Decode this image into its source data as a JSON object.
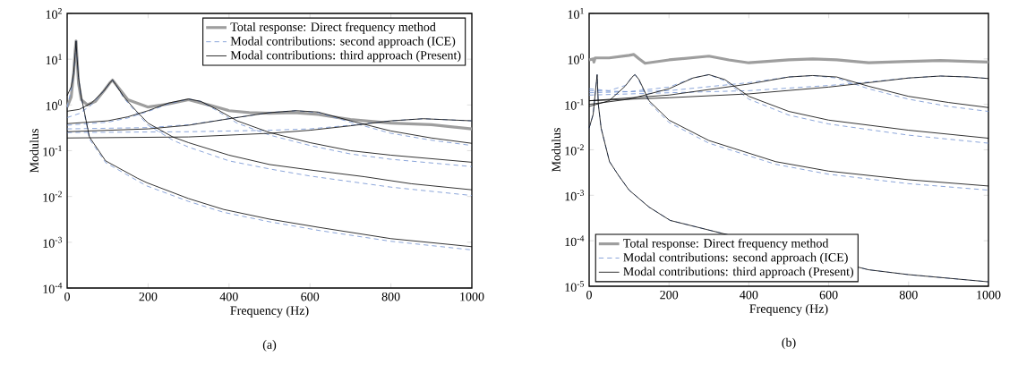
{
  "chart_data": [
    {
      "type": "line",
      "xlabel": "Frequency (Hz)",
      "ylabel": "Modulus",
      "annotations": [
        "(a)"
      ],
      "log": "y",
      "legend": "top right",
      "xlim": [
        0,
        1000
      ],
      "ylim": [
        0.0001,
        100
      ],
      "xticks": [
        0,
        200,
        400,
        600,
        800,
        1000
      ],
      "yticks": [
        {
          "value": 0.0001,
          "label": "10$^{-4}$"
        },
        {
          "value": 0.001,
          "label": "10$^{-3}$"
        },
        {
          "value": 0.01,
          "label": "10$^{-2}$"
        },
        {
          "value": 0.1,
          "label": "10$^{-1}$"
        },
        {
          "value": 1,
          "label": "10$^{0}$"
        },
        {
          "value": 10,
          "label": "10$^{1}$"
        },
        {
          "value": 100,
          "label": "10$^{2}$"
        }
      ],
      "series": [
        {
          "name": "Total response: Direct frequency method",
          "color": "#9e9e9e",
          "line_style": "solid",
          "x": [
            0,
            10,
            16,
            20,
            22,
            24,
            28,
            35,
            50,
            70,
            90,
            105,
            112,
            125,
            150,
            200,
            250,
            300,
            350,
            400,
            450,
            500,
            560,
            620,
            700,
            800,
            900,
            1000
          ],
          "values": [
            0.9,
            1.5,
            5,
            16,
            25,
            12,
            3,
            1.3,
            1.0,
            1.2,
            2.0,
            3.0,
            3.5,
            2.5,
            1.3,
            0.9,
            1.05,
            1.3,
            1.0,
            0.75,
            0.68,
            0.66,
            0.68,
            0.62,
            0.48,
            0.4,
            0.37,
            0.3
          ]
        },
        {
          "name": "Modal contributions: second approach (ICE)",
          "color": "#6f8fd0",
          "line_style": "dashed",
          "x": [
            0,
            10,
            16,
            20,
            22,
            24,
            28,
            35,
            55,
            95,
            174,
            197,
            300,
            387,
            500,
            624,
            800,
            1000
          ],
          "values": [
            0.88,
            2.2,
            4.8,
            14,
            25,
            12,
            4,
            1.4,
            0.18,
            0.055,
            0.022,
            0.017,
            0.0078,
            0.0045,
            0.0028,
            0.0018,
            0.00105,
            0.00068
          ]
        },
        {
          "color": "#6f8fd0",
          "line_style": "dashed",
          "x": [
            0,
            30,
            60,
            90,
            105,
            112,
            120,
            140,
            170,
            200,
            261,
            300,
            400,
            500,
            600,
            800,
            1000
          ],
          "values": [
            0.53,
            0.65,
            1.0,
            2.0,
            3.0,
            3.5,
            2.8,
            1.4,
            0.7,
            0.36,
            0.17,
            0.12,
            0.06,
            0.04,
            0.028,
            0.016,
            0.0105
          ]
        },
        {
          "color": "#6f8fd0",
          "line_style": "dashed",
          "x": [
            0,
            100,
            150,
            200,
            250,
            300,
            330,
            370,
            420,
            500,
            600,
            700,
            800,
            1000
          ],
          "values": [
            0.36,
            0.42,
            0.52,
            0.72,
            1.05,
            1.35,
            1.2,
            0.75,
            0.4,
            0.22,
            0.13,
            0.085,
            0.065,
            0.045
          ]
        },
        {
          "color": "#6f8fd0",
          "line_style": "dashed",
          "x": [
            0,
            200,
            300,
            400,
            500,
            565,
            620,
            700,
            800,
            900,
            1000
          ],
          "values": [
            0.3,
            0.32,
            0.37,
            0.5,
            0.68,
            0.75,
            0.68,
            0.42,
            0.24,
            0.17,
            0.13
          ]
        },
        {
          "color": "#6f8fd0",
          "line_style": "dashed",
          "x": [
            0,
            300,
            500,
            600,
            700,
            800,
            880,
            950,
            1000
          ],
          "values": [
            0.25,
            0.26,
            0.28,
            0.3,
            0.36,
            0.45,
            0.5,
            0.47,
            0.45
          ]
        },
        {
          "name": "Modal contributions: third approach (Present)",
          "color": "#000000",
          "line_style": "solid",
          "x": [
            0,
            10,
            16,
            20,
            22,
            24,
            28,
            35,
            55,
            95,
            174,
            197,
            300,
            387,
            500,
            624,
            800,
            1000
          ],
          "values": [
            1.6,
            2.5,
            5,
            14,
            25,
            12,
            4,
            1.5,
            0.2,
            0.06,
            0.025,
            0.02,
            0.009,
            0.0052,
            0.0032,
            0.0021,
            0.0012,
            0.0008
          ]
        },
        {
          "color": "#000000",
          "line_style": "solid",
          "x": [
            0,
            30,
            60,
            90,
            105,
            112,
            120,
            140,
            170,
            200,
            261,
            300,
            400,
            500,
            600,
            735,
            850,
            1000
          ],
          "values": [
            0.73,
            0.8,
            1.1,
            2.0,
            3.0,
            3.5,
            2.8,
            1.5,
            0.75,
            0.4,
            0.2,
            0.15,
            0.08,
            0.05,
            0.038,
            0.027,
            0.019,
            0.014
          ]
        },
        {
          "color": "#000000",
          "line_style": "solid",
          "x": [
            0,
            100,
            150,
            200,
            250,
            300,
            330,
            370,
            420,
            500,
            600,
            700,
            800,
            1000
          ],
          "values": [
            0.39,
            0.45,
            0.55,
            0.75,
            1.1,
            1.35,
            1.2,
            0.8,
            0.45,
            0.25,
            0.15,
            0.1,
            0.08,
            0.056
          ]
        },
        {
          "color": "#000000",
          "line_style": "solid",
          "x": [
            0,
            200,
            300,
            400,
            500,
            565,
            620,
            700,
            800,
            900,
            1000
          ],
          "values": [
            0.26,
            0.3,
            0.36,
            0.5,
            0.68,
            0.75,
            0.7,
            0.45,
            0.27,
            0.19,
            0.145
          ]
        },
        {
          "color": "#000000",
          "line_style": "solid",
          "x": [
            0,
            300,
            500,
            600,
            700,
            800,
            880,
            950,
            1000
          ],
          "values": [
            0.19,
            0.2,
            0.24,
            0.28,
            0.35,
            0.45,
            0.5,
            0.47,
            0.45
          ]
        }
      ]
    },
    {
      "type": "line",
      "xlabel": "Frequency (Hz)",
      "ylabel": "Modulus",
      "annotations": [
        "(b)"
      ],
      "log": "y",
      "legend": "bottom left",
      "xlim": [
        0,
        1000
      ],
      "ylim": [
        1e-05,
        10
      ],
      "xticks": [
        0,
        200,
        400,
        600,
        800,
        1000
      ],
      "yticks": [
        {
          "value": 1e-05,
          "label": "10$^{-5}$"
        },
        {
          "value": 0.0001,
          "label": "10$^{-4}$"
        },
        {
          "value": 0.001,
          "label": "10$^{-3}$"
        },
        {
          "value": 0.01,
          "label": "10$^{-2}$"
        },
        {
          "value": 0.1,
          "label": "10$^{-1}$"
        },
        {
          "value": 1,
          "label": "10$^{0}$"
        },
        {
          "value": 10,
          "label": "10$^{1}$"
        }
      ],
      "series": [
        {
          "name": "Total response: Direct frequency method",
          "color": "#9e9e9e",
          "line_style": "solid",
          "x": [
            0,
            10,
            12,
            15,
            50,
            100,
            112,
            125,
            140,
            200,
            300,
            350,
            400,
            500,
            560,
            620,
            700,
            800,
            880,
            1000
          ],
          "values": [
            0.95,
            1.0,
            0.85,
            1.05,
            1.05,
            1.2,
            1.25,
            1.0,
            0.8,
            0.95,
            1.15,
            0.95,
            0.82,
            0.95,
            1.0,
            0.95,
            0.82,
            0.88,
            0.92,
            0.85
          ]
        },
        {
          "name": "Modal contributions: second approach (ICE)",
          "color": "#6f8fd0",
          "line_style": "dashed",
          "x": [
            0,
            10,
            16,
            20,
            23,
            30,
            51,
            74,
            100,
            150,
            203,
            300,
            400,
            500,
            600,
            700,
            800,
            1000
          ],
          "values": [
            0.03,
            0.06,
            0.2,
            0.45,
            0.1,
            0.03,
            0.0055,
            0.0027,
            0.0013,
            0.00055,
            0.00028,
            null,
            null,
            null,
            null,
            2.3e-05,
            1.8e-05,
            1.25e-05
          ]
        },
        {
          "color": "#6f8fd0",
          "line_style": "dashed",
          "x": [
            0,
            50,
            90,
            110,
            115,
            125,
            150,
            200,
            300,
            467,
            600,
            800,
            1000
          ],
          "values": [
            0.22,
            0.2,
            0.26,
            0.42,
            0.45,
            0.33,
            0.11,
            0.04,
            0.014,
            0.0048,
            0.0029,
            0.0018,
            0.0013
          ]
        },
        {
          "color": "#6f8fd0",
          "line_style": "dashed",
          "x": [
            0,
            100,
            200,
            260,
            300,
            340,
            400,
            500,
            600,
            800,
            1000
          ],
          "values": [
            0.2,
            0.19,
            0.24,
            0.38,
            0.45,
            0.33,
            0.13,
            0.058,
            0.037,
            0.021,
            0.014
          ]
        },
        {
          "color": "#6f8fd0",
          "line_style": "dashed",
          "x": [
            0,
            200,
            400,
            500,
            560,
            620,
            700,
            800,
            900,
            1000
          ],
          "values": [
            0.18,
            0.2,
            0.3,
            0.4,
            0.43,
            0.38,
            0.22,
            0.13,
            0.09,
            0.07
          ]
        },
        {
          "color": "#6f8fd0",
          "line_style": "dashed",
          "x": [
            0,
            200,
            400,
            600,
            700,
            800,
            880,
            950,
            1000
          ],
          "values": [
            0.16,
            0.18,
            0.2,
            0.26,
            0.31,
            0.38,
            0.42,
            0.4,
            0.37
          ]
        },
        {
          "name": "Modal contributions: third approach (Present)",
          "color": "#000000",
          "line_style": "solid",
          "x": [
            0,
            10,
            16,
            20,
            23,
            30,
            51,
            74,
            100,
            150,
            203,
            300,
            400,
            500,
            600,
            700,
            800,
            1000
          ],
          "values": [
            0.03,
            0.06,
            0.2,
            0.45,
            0.1,
            0.03,
            0.0055,
            0.0027,
            0.0013,
            0.00055,
            0.00028,
            null,
            null,
            null,
            null,
            2.3e-05,
            1.8e-05,
            1.25e-05
          ]
        },
        {
          "color": "#000000",
          "line_style": "solid",
          "x": [
            0,
            50,
            90,
            110,
            115,
            125,
            150,
            200,
            300,
            467,
            600,
            800,
            1000
          ],
          "values": [
            0.09,
            0.12,
            0.25,
            0.42,
            0.45,
            0.35,
            0.12,
            0.045,
            0.016,
            0.0055,
            0.0034,
            0.0022,
            0.0016
          ]
        },
        {
          "color": "#000000",
          "line_style": "solid",
          "x": [
            0,
            100,
            200,
            260,
            300,
            340,
            400,
            500,
            600,
            800,
            1000
          ],
          "values": [
            0.1,
            0.13,
            0.22,
            0.38,
            0.45,
            0.35,
            0.15,
            0.07,
            0.045,
            0.027,
            0.018
          ]
        },
        {
          "color": "#000000",
          "line_style": "solid",
          "x": [
            0,
            200,
            400,
            500,
            560,
            620,
            700,
            800,
            900,
            1000
          ],
          "values": [
            0.12,
            0.16,
            0.28,
            0.4,
            0.43,
            0.4,
            0.25,
            0.15,
            0.11,
            0.085
          ]
        },
        {
          "color": "#000000",
          "line_style": "solid",
          "x": [
            0,
            200,
            400,
            600,
            700,
            800,
            880,
            950,
            1000
          ],
          "values": [
            0.12,
            0.14,
            0.17,
            0.24,
            0.3,
            0.38,
            0.42,
            0.4,
            0.37
          ]
        }
      ]
    }
  ]
}
